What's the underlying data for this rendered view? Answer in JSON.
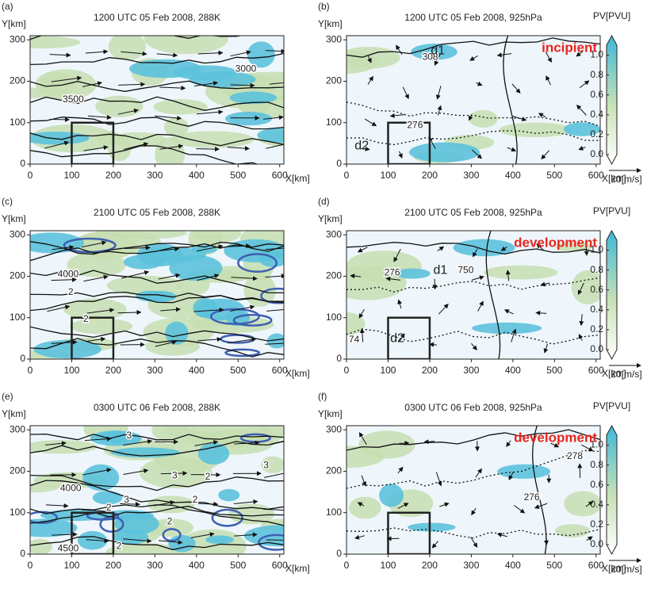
{
  "chart_data": [
    {
      "type": "contour",
      "label": "(a)",
      "title": "1200 UTC 05 Feb 2008, 288K",
      "x_label": "X[km]",
      "y_label": "Y[km]",
      "xlim": [
        0,
        610
      ],
      "ylim": [
        0,
        310
      ],
      "xticks": [
        0,
        100,
        200,
        300,
        400,
        500,
        600
      ],
      "yticks": [
        0,
        100,
        200,
        300
      ],
      "box_x": [
        100,
        200
      ],
      "box_y": [
        0,
        100
      ],
      "annotations": [
        "3500",
        "3000"
      ]
    },
    {
      "type": "contour",
      "label": "(b)",
      "title": "1200 UTC 05 Feb 2008, 925hPa",
      "x_label": "X[km]",
      "y_label": "Y[km]",
      "xlim": [
        0,
        610
      ],
      "ylim": [
        0,
        310
      ],
      "xticks": [
        0,
        100,
        200,
        300,
        400,
        500,
        600
      ],
      "yticks": [
        0,
        100,
        200,
        300
      ],
      "box_x": [
        100,
        200
      ],
      "box_y": [
        0,
        100
      ],
      "annotations": [
        "276",
        "308"
      ],
      "features": [
        "d2",
        "d1"
      ],
      "stage": "incipient"
    },
    {
      "type": "contour",
      "label": "(c)",
      "title": "2100 UTC 05 Feb 2008, 288K",
      "x_label": "X[km]",
      "y_label": "Y[km]",
      "xlim": [
        0,
        610
      ],
      "ylim": [
        0,
        310
      ],
      "xticks": [
        0,
        100,
        200,
        300,
        400,
        500,
        600
      ],
      "yticks": [
        0,
        100,
        200,
        300
      ],
      "box_x": [
        100,
        200
      ],
      "box_y": [
        0,
        100
      ],
      "annotations": [
        "2",
        "2",
        "4000"
      ]
    },
    {
      "type": "contour",
      "label": "(d)",
      "title": "2100 UTC 05 Feb 2008, 925hPa",
      "x_label": "X[km]",
      "y_label": "Y[km]",
      "xlim": [
        0,
        610
      ],
      "ylim": [
        0,
        310
      ],
      "xticks": [
        0,
        100,
        200,
        300,
        400,
        500,
        600
      ],
      "yticks": [
        0,
        100,
        200,
        300
      ],
      "box_x": [
        100,
        200
      ],
      "box_y": [
        0,
        100
      ],
      "annotations": [
        "74",
        "276",
        "750"
      ],
      "features": [
        "d2",
        "d1"
      ],
      "stage": "development"
    },
    {
      "type": "contour",
      "label": "(e)",
      "title": "0300 UTC 06 Feb 2008, 288K",
      "x_label": "X[km]",
      "y_label": "Y[km]",
      "xlim": [
        0,
        610
      ],
      "ylim": [
        0,
        310
      ],
      "xticks": [
        0,
        100,
        200,
        300,
        400,
        500,
        600
      ],
      "yticks": [
        0,
        100,
        200,
        300
      ],
      "box_x": [
        100,
        200
      ],
      "box_y": [
        0,
        100
      ],
      "annotations": [
        "4500",
        "2",
        "2",
        "3",
        "2",
        "2",
        "2",
        "3",
        "4000",
        "3",
        "3"
      ]
    },
    {
      "type": "contour",
      "label": "(f)",
      "title": "0300 UTC 06 Feb 2008, 925hPa",
      "x_label": "X[km]",
      "y_label": "Y[km]",
      "xlim": [
        0,
        610
      ],
      "ylim": [
        0,
        310
      ],
      "xticks": [
        0,
        100,
        200,
        300,
        400,
        500,
        600
      ],
      "yticks": [
        0,
        100,
        200,
        300
      ],
      "box_x": [
        100,
        200
      ],
      "box_y": [
        0,
        100
      ],
      "annotations": [
        "276",
        "278"
      ],
      "stage": "development"
    }
  ],
  "colorbar": {
    "label": "PV[PVU]",
    "range": [
      0,
      1.1
    ],
    "ticks": [
      {
        "value": 0,
        "label": "0.0"
      },
      {
        "value": 0.2,
        "label": "0.2"
      },
      {
        "value": 0.4,
        "label": "0.4"
      },
      {
        "value": 0.6,
        "label": "0.6"
      },
      {
        "value": 0.8,
        "label": "0.8"
      },
      {
        "value": 1.0,
        "label": "1.0"
      }
    ],
    "vector_scale": "20[m/s]"
  }
}
